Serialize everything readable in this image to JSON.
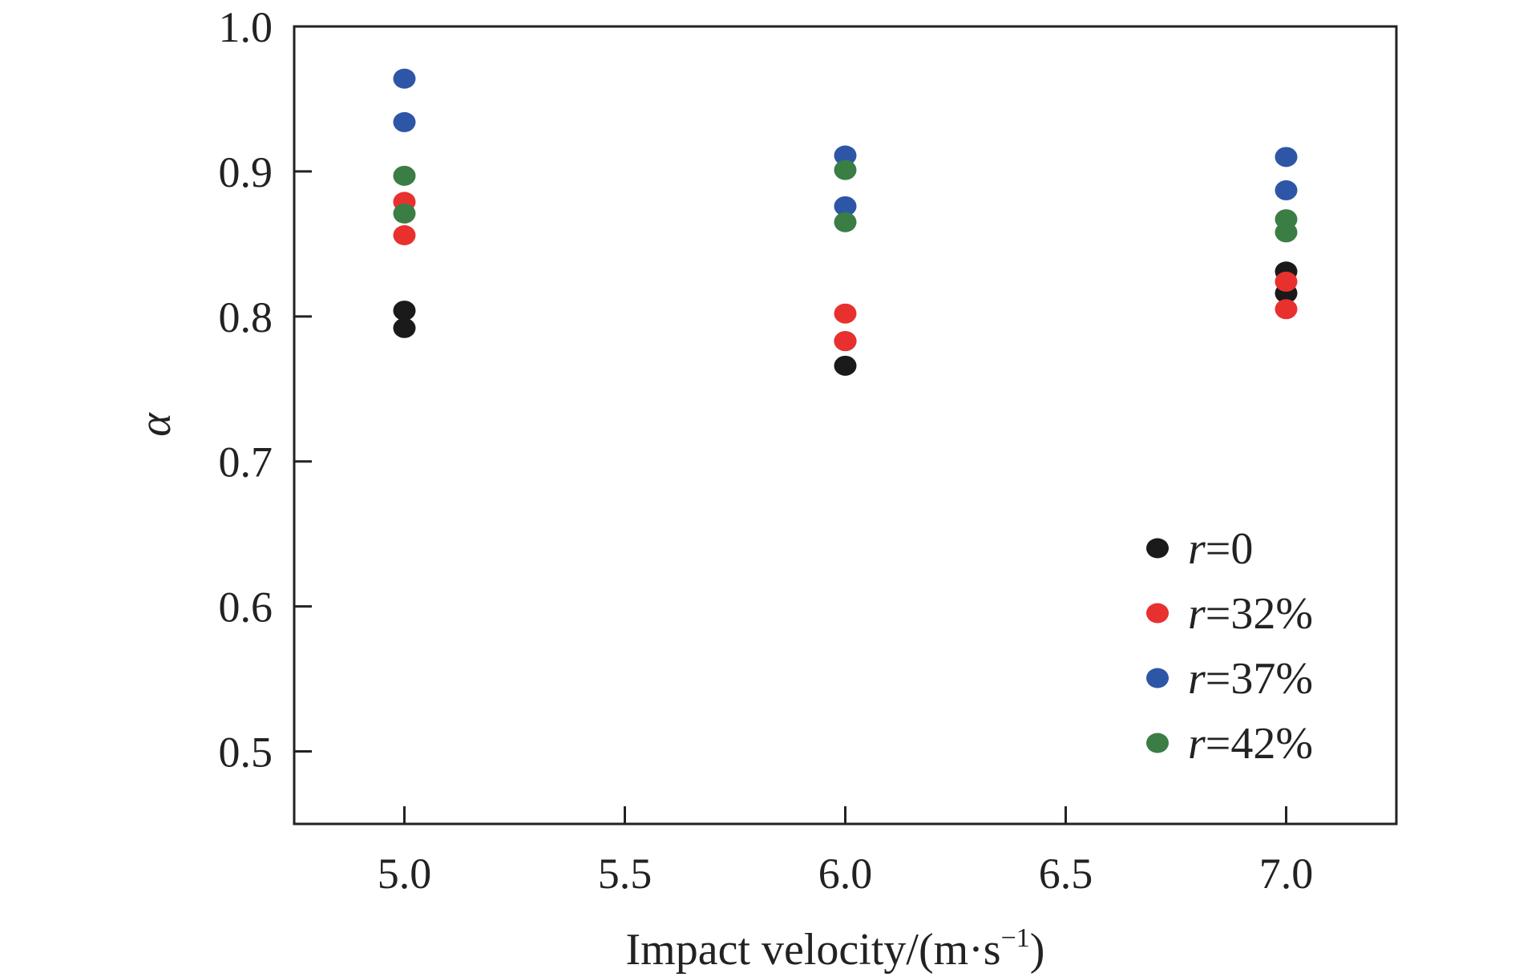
{
  "chart_data": {
    "type": "scatter",
    "title": "",
    "xlabel": "Impact velocity/(m·s",
    "xlabel_sup": "−1",
    "xlabel_close": ")",
    "ylabel": "α",
    "xlim": [
      4.75,
      7.25
    ],
    "ylim": [
      0.45,
      1.0
    ],
    "x_ticks": [
      5.0,
      5.5,
      6.0,
      6.5,
      7.0
    ],
    "x_tick_labels": [
      "5.0",
      "5.5",
      "6.0",
      "6.5",
      "7.0"
    ],
    "y_ticks": [
      0.5,
      0.6,
      0.7,
      0.8,
      0.9,
      1.0
    ],
    "y_tick_labels": [
      "0.5",
      "0.6",
      "0.7",
      "0.8",
      "0.9",
      "1.0"
    ],
    "grid": false,
    "legend_position": "bottom-right",
    "series": [
      {
        "name": "r=0",
        "name_var": "r",
        "name_value": "=0",
        "color": "#1a1a1a",
        "points": [
          [
            5.0,
            0.804
          ],
          [
            5.0,
            0.792
          ],
          [
            6.0,
            0.783
          ],
          [
            6.0,
            0.766
          ],
          [
            7.0,
            0.831
          ],
          [
            7.0,
            0.816
          ]
        ]
      },
      {
        "name": "r=32%",
        "name_var": "r",
        "name_value": "=32%",
        "color": "#e8312f",
        "points": [
          [
            5.0,
            0.879
          ],
          [
            5.0,
            0.856
          ],
          [
            6.0,
            0.802
          ],
          [
            6.0,
            0.783
          ],
          [
            7.0,
            0.824
          ],
          [
            7.0,
            0.805
          ]
        ]
      },
      {
        "name": "r=37%",
        "name_var": "r",
        "name_value": "=37%",
        "color": "#2e56a6",
        "points": [
          [
            5.0,
            0.964
          ],
          [
            5.0,
            0.934
          ],
          [
            6.0,
            0.911
          ],
          [
            6.0,
            0.876
          ],
          [
            7.0,
            0.91
          ],
          [
            7.0,
            0.887
          ]
        ]
      },
      {
        "name": "r=42%",
        "name_var": "r",
        "name_value": "=42%",
        "color": "#3a7d45",
        "points": [
          [
            5.0,
            0.897
          ],
          [
            5.0,
            0.871
          ],
          [
            6.0,
            0.901
          ],
          [
            6.0,
            0.865
          ],
          [
            7.0,
            0.867
          ],
          [
            7.0,
            0.858
          ]
        ]
      }
    ]
  }
}
